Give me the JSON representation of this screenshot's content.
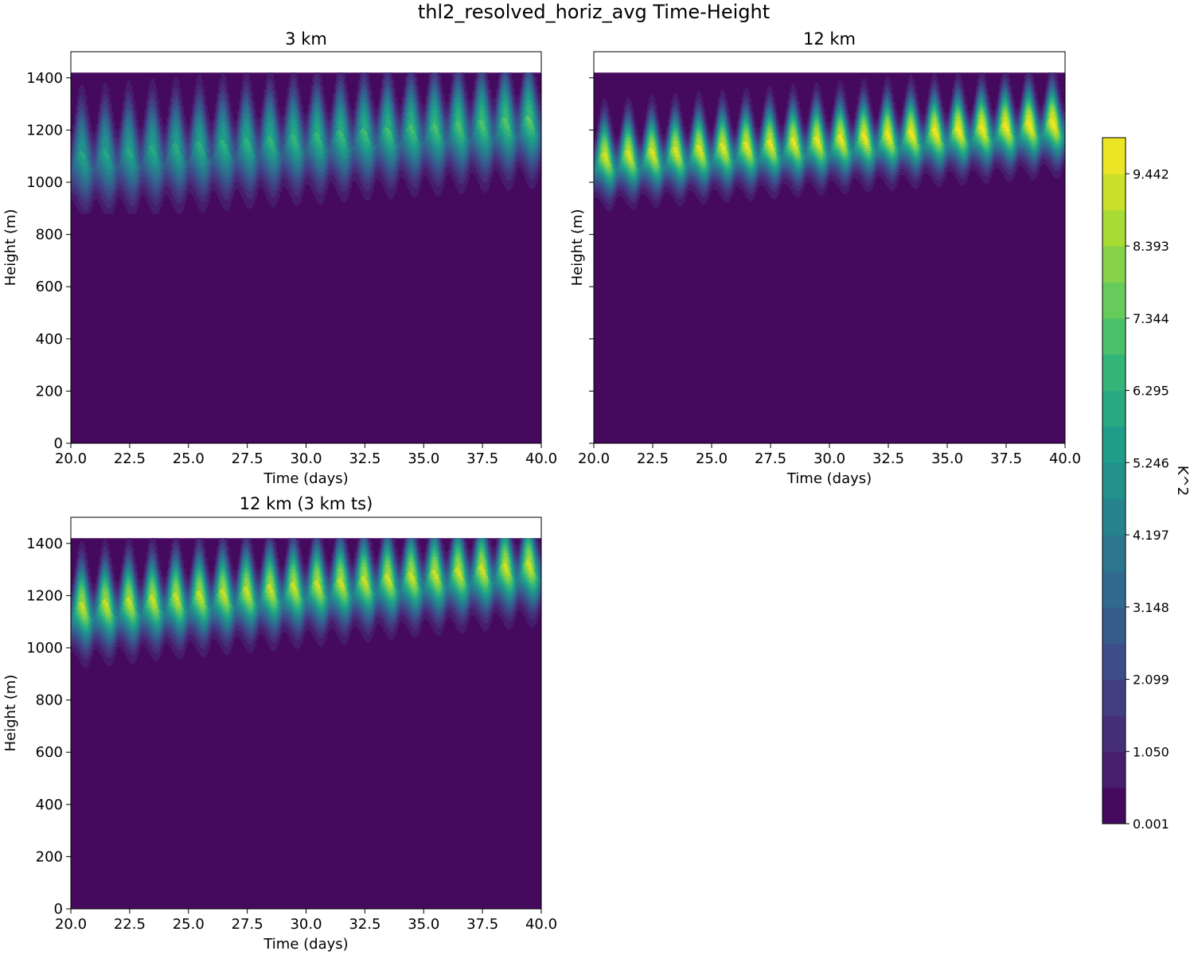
{
  "figure": {
    "title": "thl2_resolved_horiz_avg Time-Height"
  },
  "chart_data": [
    {
      "type": "heatmap",
      "title": "3 km",
      "xlabel": "Time (days)",
      "ylabel": "Height (m)",
      "xlim": [
        20.0,
        40.0
      ],
      "ylim": [
        0,
        1500
      ],
      "data_top": 1420,
      "xticks": [
        "20.0",
        "22.5",
        "25.0",
        "27.5",
        "30.0",
        "32.5",
        "35.0",
        "37.5",
        "40.0"
      ],
      "yticks": [
        "0",
        "200",
        "400",
        "600",
        "800",
        "1000",
        "1200",
        "1400"
      ],
      "show_ytick_labels": true,
      "band": {
        "cycles": 20,
        "center_start": 1085,
        "center_end": 1225,
        "peak_start": 5.2,
        "peak_end": 6.8,
        "half_width": 95,
        "tail": 60
      }
    },
    {
      "type": "heatmap",
      "title": "12 km",
      "xlabel": "Time (days)",
      "ylabel": "Height (m)",
      "xlim": [
        20.0,
        40.0
      ],
      "ylim": [
        0,
        1500
      ],
      "data_top": 1420,
      "xticks": [
        "20.0",
        "22.5",
        "25.0",
        "27.5",
        "30.0",
        "32.5",
        "35.0",
        "37.5",
        "40.0"
      ],
      "yticks": [
        "0",
        "200",
        "400",
        "600",
        "800",
        "1000",
        "1200",
        "1400"
      ],
      "show_ytick_labels": false,
      "band": {
        "cycles": 20,
        "center_start": 1080,
        "center_end": 1215,
        "peak_start": 8.7,
        "peak_end": 9.4,
        "half_width": 70,
        "tail": 80
      }
    },
    {
      "type": "heatmap",
      "title": "12 km (3 km ts)",
      "xlabel": "Time (days)",
      "ylabel": "Height (m)",
      "xlim": [
        20.0,
        40.0
      ],
      "ylim": [
        0,
        1500
      ],
      "data_top": 1420,
      "xticks": [
        "20.0",
        "22.5",
        "25.0",
        "27.5",
        "30.0",
        "32.5",
        "35.0",
        "37.5",
        "40.0"
      ],
      "yticks": [
        "0",
        "200",
        "400",
        "600",
        "800",
        "1000",
        "1200",
        "1400"
      ],
      "show_ytick_labels": true,
      "band": {
        "cycles": 20,
        "center_start": 1140,
        "center_end": 1305,
        "peak_start": 8.4,
        "peak_end": 8.6,
        "half_width": 80,
        "tail": 90
      }
    }
  ],
  "colorbar": {
    "label": "K^2",
    "min": 0.001,
    "max": 9.966,
    "levels": 19,
    "ticks": [
      "0.001",
      "1.050",
      "2.099",
      "3.148",
      "4.197",
      "5.246",
      "6.295",
      "7.344",
      "8.393",
      "9.442"
    ],
    "colormap": "viridis",
    "viridis_stops": [
      "#440154",
      "#482878",
      "#3e4989",
      "#31688e",
      "#26828e",
      "#1f9e89",
      "#35b779",
      "#6ece58",
      "#b5de2b",
      "#fde725"
    ]
  }
}
